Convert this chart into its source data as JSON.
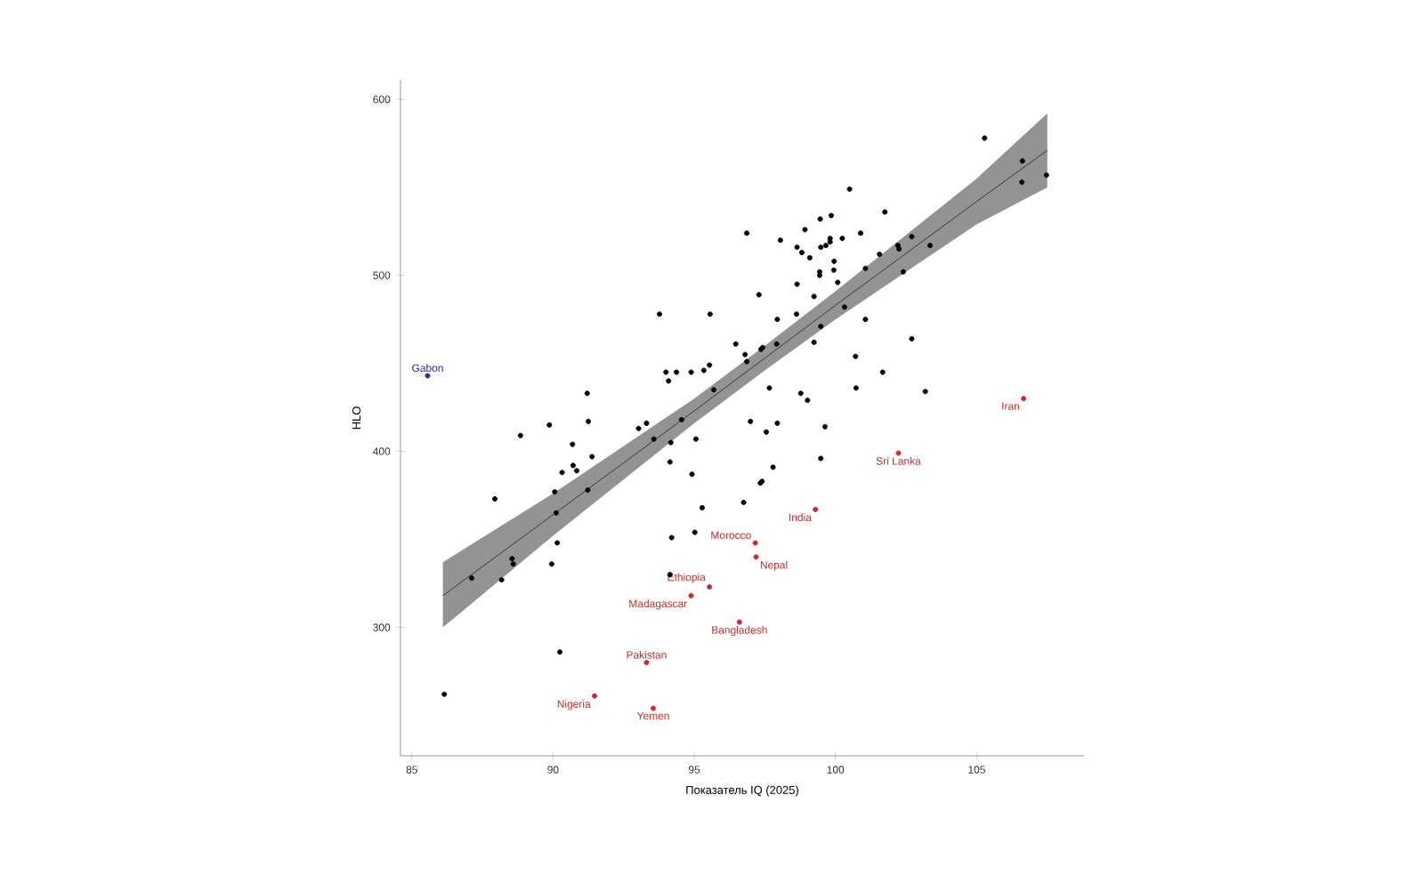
{
  "chart_data": {
    "type": "scatter",
    "xlabel": "Показатель IQ (2025)",
    "ylabel": "HLO",
    "xlim": [
      84.6,
      108.8
    ],
    "ylim": [
      227,
      611
    ],
    "xticks": [
      85,
      90,
      95,
      100,
      105
    ],
    "yticks": [
      300,
      400,
      500,
      600
    ],
    "grid": false,
    "marker": "circle",
    "series": [
      {
        "color": "#000000",
        "x": [
          93.77,
          95.56,
          94.0,
          94.09,
          94.37,
          94.89,
          95.34,
          95.54,
          95.69,
          91.21,
          91.25,
          89.87,
          88.85,
          90.69,
          93.03,
          93.31,
          94.55,
          93.57,
          94.17,
          95.06,
          94.14,
          94.92,
          90.71,
          90.84,
          91.38,
          90.32,
          90.06,
          91.23,
          90.11,
          95.28,
          95.02,
          90.15,
          94.2,
          87.94,
          87.12,
          88.55,
          88.59,
          88.18,
          89.95,
          94.14,
          90.24,
          86.15,
          105.28,
          106.62,
          106.6,
          107.47,
          100.5,
          101.75,
          99.85,
          99.46,
          98.92,
          96.86,
          100.89,
          100.24,
          98.05,
          99.81,
          99.81,
          99.66,
          99.48,
          98.64,
          98.81,
          99.09,
          99.95,
          99.94,
          99.44,
          99.44,
          101.06,
          102.21,
          102.25,
          102.7,
          101.56,
          103.35,
          102.4,
          100.08,
          98.64,
          97.29,
          99.24,
          100.32,
          97.94,
          98.62,
          101.06,
          99.48,
          96.47,
          99.24,
          97.42,
          97.36,
          97.92,
          96.8,
          96.86,
          102.7,
          100.71,
          101.67,
          97.66,
          100.73,
          103.18,
          98.77,
          99.01,
          96.99,
          97.94,
          97.55,
          99.63,
          99.48,
          97.79,
          97.34,
          97.4,
          96.75
        ],
        "values": [
          478,
          478,
          445,
          440,
          445,
          445,
          446,
          449,
          435,
          433,
          417,
          415,
          409,
          404,
          413,
          416,
          418,
          407,
          405,
          407,
          394,
          387,
          392,
          389,
          397,
          388,
          377,
          378,
          365,
          368,
          354,
          348,
          351,
          373,
          328,
          339,
          336,
          327,
          336,
          330,
          286,
          262,
          578,
          565,
          553,
          557,
          549,
          536,
          534,
          532,
          526,
          524,
          524,
          521,
          520,
          521,
          519,
          517,
          516,
          516,
          513,
          510,
          508,
          503,
          502,
          500,
          504,
          517,
          515,
          522,
          512,
          517,
          502,
          496,
          495,
          489,
          488,
          482,
          475,
          478,
          475,
          471,
          461,
          462,
          459,
          458,
          461,
          455,
          451,
          464,
          454,
          445,
          436,
          436,
          434,
          433,
          429,
          417,
          416,
          411,
          414,
          396,
          391,
          382,
          383,
          371
        ]
      },
      {
        "color": "#cc2929",
        "x": [
          95.54,
          94.89,
          93.31,
          91.47,
          93.55,
          106.66,
          102.23,
          99.29,
          97.16,
          97.19,
          96.6
        ],
        "values": [
          323,
          318,
          280,
          261,
          254,
          430,
          399,
          367,
          348,
          340,
          303
        ]
      },
      {
        "color": "#2b2b9e",
        "x": [
          85.56
        ],
        "values": [
          443
        ]
      },
      {
        "type": "line",
        "color": "#3a3a3a",
        "marker": "none",
        "x": [
          86.1,
          90,
          95,
          97.5,
          100,
          105,
          107.5
        ],
        "values": [
          318,
          364,
          423,
          453,
          483,
          542,
          571
        ],
        "lower": [
          300,
          352,
          416,
          446,
          475,
          529,
          550
        ],
        "upper": [
          337,
          376,
          430,
          460,
          491,
          555,
          592
        ]
      }
    ],
    "annotations": [
      {
        "text": "Gabon",
        "x": 85.56,
        "y": 443
      },
      {
        "text": "Ethiopia",
        "x": 95.54,
        "y": 323
      },
      {
        "text": "Madagascar",
        "x": 94.89,
        "y": 318
      },
      {
        "text": "Pakistan",
        "x": 93.31,
        "y": 280
      },
      {
        "text": "Nigeria",
        "x": 91.47,
        "y": 261
      },
      {
        "text": "Yemen",
        "x": 93.55,
        "y": 254
      },
      {
        "text": "Iran",
        "x": 106.66,
        "y": 430
      },
      {
        "text": "Sri Lanka",
        "x": 102.23,
        "y": 399
      },
      {
        "text": "India",
        "x": 99.29,
        "y": 367
      },
      {
        "text": "Morocco",
        "x": 97.16,
        "y": 348
      },
      {
        "text": "Nepal",
        "x": 97.19,
        "y": 340
      },
      {
        "text": "Bangladesh",
        "x": 96.6,
        "y": 303
      }
    ]
  }
}
